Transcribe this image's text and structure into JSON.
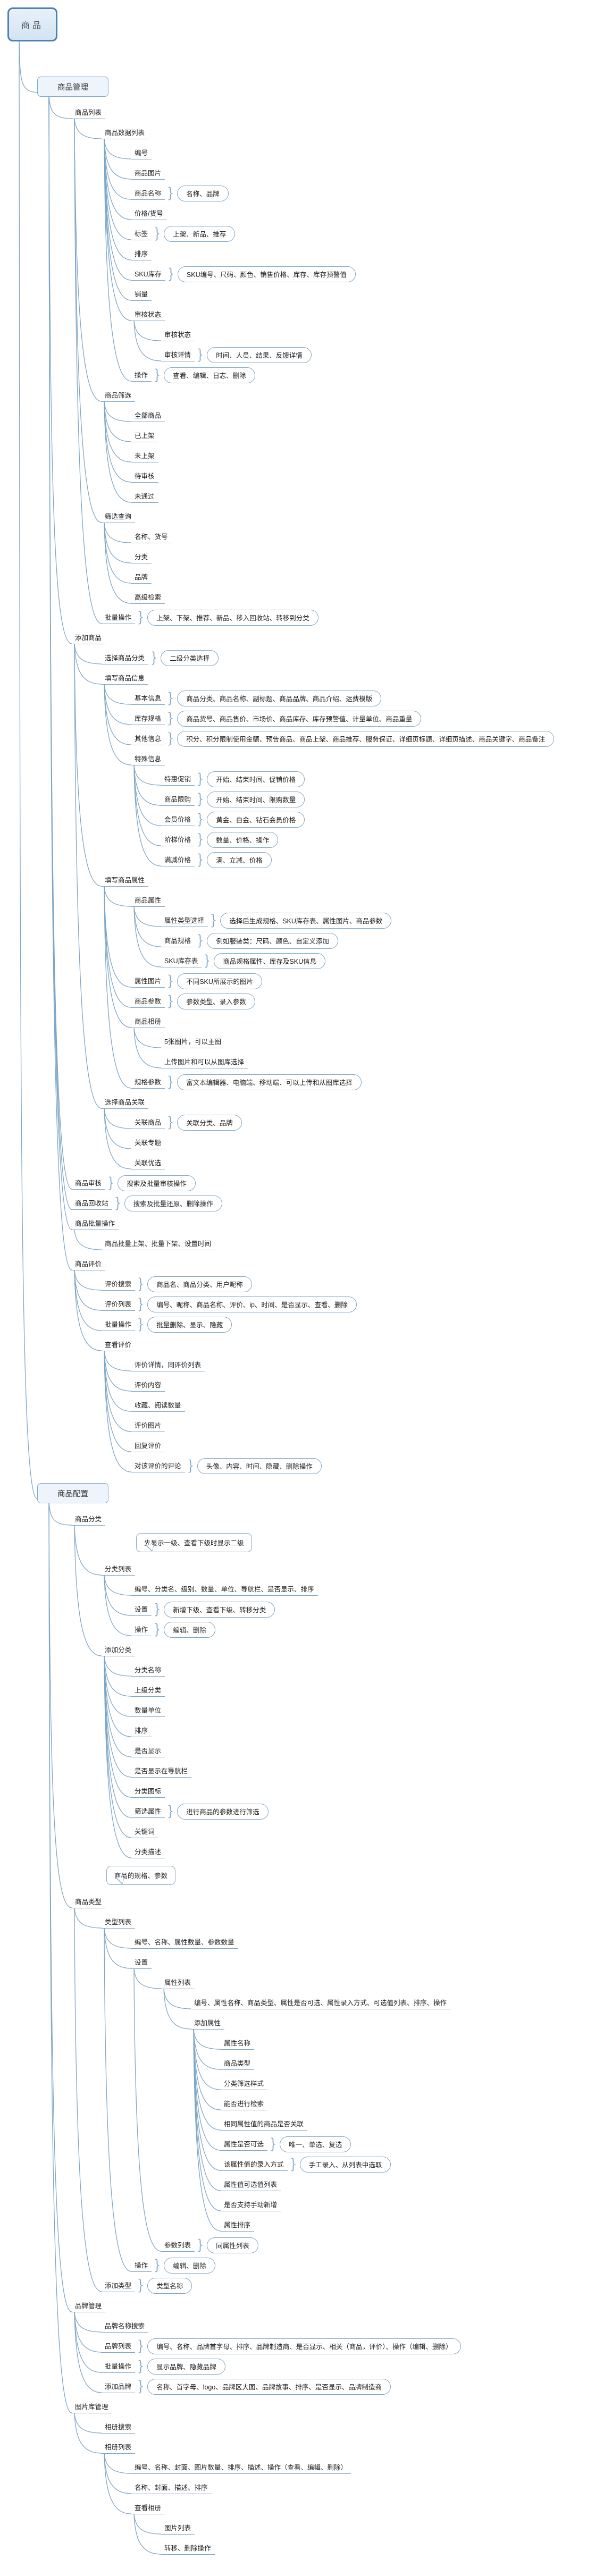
{
  "meta": {
    "app": "mindmap",
    "background": "#ffffff",
    "line_color": "#7fa6c6",
    "root_border_color": "#4f81ad",
    "root_fill_color": "#d9e8f6",
    "topic_fill_color": "#eef4fb",
    "text_color": "#1c1c1c"
  },
  "tree": {
    "text": "商品",
    "style": "root",
    "children": [
      {
        "text": "商品管理",
        "style": "topic",
        "children": [
          {
            "text": "商品列表",
            "children": [
              {
                "text": "商品数据列表",
                "children": [
                  {
                    "text": "编号"
                  },
                  {
                    "text": "商品图片"
                  },
                  {
                    "text": "商品名称",
                    "pill": "名称、品牌"
                  },
                  {
                    "text": "价格/货号"
                  },
                  {
                    "text": "标签",
                    "pill": "上架、新品、推荐"
                  },
                  {
                    "text": "排序"
                  },
                  {
                    "text": "SKU库存",
                    "pill": "SKU编号、尺码、颜色、销售价格、库存、库存预警值"
                  },
                  {
                    "text": "销量"
                  },
                  {
                    "text": "审核状态",
                    "children": [
                      {
                        "text": "审核状态"
                      },
                      {
                        "text": "审核详情",
                        "pill": "时间、人员、结果、反馈详情"
                      }
                    ]
                  },
                  {
                    "text": "操作",
                    "pill": "查看、编辑、日志、删除"
                  }
                ]
              },
              {
                "text": "商品筛选",
                "children": [
                  {
                    "text": "全部商品"
                  },
                  {
                    "text": "已上架"
                  },
                  {
                    "text": "未上架"
                  },
                  {
                    "text": "待审核"
                  },
                  {
                    "text": "未通过"
                  }
                ]
              },
              {
                "text": "筛选查询",
                "children": [
                  {
                    "text": "名称、货号"
                  },
                  {
                    "text": "分类"
                  },
                  {
                    "text": "品牌"
                  },
                  {
                    "text": "高级检索"
                  }
                ]
              },
              {
                "text": "批量操作",
                "pill": "上架、下架、推荐、新品、移入回收站、转移到分类"
              }
            ]
          },
          {
            "text": "添加商品",
            "children": [
              {
                "text": "选择商品分类",
                "pill": "二级分类选择"
              },
              {
                "text": "填写商品信息",
                "children": [
                  {
                    "text": "基本信息",
                    "pill": "商品分类、商品名称、副标题、商品品牌、商品介绍、运费模版"
                  },
                  {
                    "text": "库存规格",
                    "pill": "商品货号、商品售价、市场价、商品库存、库存预警值、计量单位、商品重量"
                  },
                  {
                    "text": "其他信息",
                    "pill": "积分、积分限制使用金额、预告商品、商品上架、商品推荐、服务保证、详细页标题、详细页描述、商品关键字、商品备注"
                  },
                  {
                    "text": "特殊信息",
                    "children": [
                      {
                        "text": "特惠促销",
                        "pill": "开始、结束时间、促销价格"
                      },
                      {
                        "text": "商品限购",
                        "pill": "开始、结束时间、限购数量"
                      },
                      {
                        "text": "会员价格",
                        "pill": "黄金、白金、钻石会员价格"
                      },
                      {
                        "text": "阶梯价格",
                        "pill": "数量、价格、操作"
                      },
                      {
                        "text": "满减价格",
                        "pill": "满、立减、价格"
                      }
                    ]
                  }
                ]
              },
              {
                "text": "填写商品属性",
                "children": [
                  {
                    "text": "商品属性",
                    "children": [
                      {
                        "text": "属性类型选择",
                        "pill": "选择后生成规格、SKU库存表、属性图片、商品参数"
                      },
                      {
                        "text": "商品规格",
                        "pill": "例如服装类：尺码、颜色、自定义添加"
                      },
                      {
                        "text": "SKU库存表",
                        "pill": "商品规格属性、库存及SKU信息"
                      }
                    ]
                  },
                  {
                    "text": "属性图片",
                    "pill": "不同SKU所展示的图片"
                  },
                  {
                    "text": "商品参数",
                    "pill": "参数类型、录入参数"
                  },
                  {
                    "text": "商品相册",
                    "children": [
                      {
                        "text": "5张图片，可以主图"
                      },
                      {
                        "text": "上传图片和可以从图库选择"
                      }
                    ]
                  },
                  {
                    "text": "规格参数",
                    "pill": "富文本编辑器、电脑端、移动端、可以上传和从图库选择"
                  }
                ]
              },
              {
                "text": "选择商品关联",
                "children": [
                  {
                    "text": "关联商品",
                    "pill": "关联分类、品牌"
                  },
                  {
                    "text": "关联专题"
                  },
                  {
                    "text": "关联优选"
                  }
                ]
              }
            ]
          },
          {
            "text": "商品审核",
            "pill": "搜索及批量审核操作"
          },
          {
            "text": "商品回收站",
            "pill": "搜索及批量还原、删除操作"
          },
          {
            "text": "商品批量操作",
            "children": [
              {
                "text": "商品批量上架、批量下架、设置时间"
              }
            ]
          },
          {
            "text": "商品评价",
            "children": [
              {
                "text": "评价搜索",
                "pill": "商品名、商品分类、用户昵称"
              },
              {
                "text": "评价列表",
                "pill": "编号、昵称、商品名称、评价、ip、时间、是否显示、查看、删除"
              },
              {
                "text": "批量操作",
                "pill": "批量删除、显示、隐藏"
              },
              {
                "text": "查看评价",
                "children": [
                  {
                    "text": "评价详情，同评价列表"
                  },
                  {
                    "text": "评价内容"
                  },
                  {
                    "text": "收藏、阅读数量"
                  },
                  {
                    "text": "评价图片"
                  },
                  {
                    "text": "回复评价"
                  },
                  {
                    "text": "对该评价的评论",
                    "pill": "头像、内容、时间、隐藏、删除操作"
                  }
                ]
              }
            ]
          }
        ]
      },
      {
        "text": "商品配置",
        "style": "topic",
        "children": [
          {
            "text": "商品分类",
            "children": [
              {
                "text": "分类列表",
                "callout": "先显示一级、查看下级时显示二级",
                "children": [
                  {
                    "text": "编号、分类名、级别、数量、单位、导航栏、是否显示、排序"
                  },
                  {
                    "text": "设置",
                    "pill": "新增下级、查看下级、转移分类"
                  },
                  {
                    "text": "操作",
                    "pill": "编辑、删除"
                  }
                ]
              },
              {
                "text": "添加分类",
                "children": [
                  {
                    "text": "分类名称"
                  },
                  {
                    "text": "上级分类"
                  },
                  {
                    "text": "数量单位"
                  },
                  {
                    "text": "排序"
                  },
                  {
                    "text": "是否显示"
                  },
                  {
                    "text": "是否显示在导航栏"
                  },
                  {
                    "text": "分类图标"
                  },
                  {
                    "text": "筛选属性",
                    "pill": "进行商品的参数进行筛选"
                  },
                  {
                    "text": "关键词"
                  },
                  {
                    "text": "分类描述"
                  }
                ]
              }
            ]
          },
          {
            "text": "商品类型",
            "callout": "商品的规格、参数",
            "children": [
              {
                "text": "类型列表",
                "children": [
                  {
                    "text": "编号、名称、属性数量、参数数量"
                  },
                  {
                    "text": "设置",
                    "children": [
                      {
                        "text": "属性列表",
                        "children": [
                          {
                            "text": "编号、属性名称、商品类型、属性是否可选、属性录入方式、可选值列表、排序、操作"
                          },
                          {
                            "text": "添加属性",
                            "children": [
                              {
                                "text": "属性名称"
                              },
                              {
                                "text": "商品类型"
                              },
                              {
                                "text": "分类筛选样式"
                              },
                              {
                                "text": "能否进行检索"
                              },
                              {
                                "text": "相同属性值的商品是否关联"
                              },
                              {
                                "text": "属性是否可选",
                                "pill": "唯一、单选、复选"
                              },
                              {
                                "text": "该属性值的录入方式",
                                "pill": "手工录入、从列表中选取"
                              },
                              {
                                "text": "属性值可选值列表"
                              },
                              {
                                "text": "是否支持手动新增"
                              },
                              {
                                "text": "属性排序"
                              }
                            ]
                          }
                        ]
                      },
                      {
                        "text": "参数列表",
                        "pill": "同属性列表"
                      }
                    ]
                  },
                  {
                    "text": "操作",
                    "pill": "编辑、删除"
                  }
                ]
              },
              {
                "text": "添加类型",
                "pill": "类型名称"
              }
            ]
          },
          {
            "text": "品牌管理",
            "children": [
              {
                "text": "品牌名称搜索"
              },
              {
                "text": "品牌列表",
                "pill": "编号、名称、品牌首字母、排序、品牌制造商、是否显示、相关（商品，评价）、操作（编辑、删除）"
              },
              {
                "text": "批量操作",
                "pill": "显示品牌、隐藏品牌"
              },
              {
                "text": "添加品牌",
                "pill": "名称、首字母、logo、品牌区大图、品牌故事、排序、是否显示、品牌制造商"
              }
            ]
          },
          {
            "text": "图片库管理",
            "children": [
              {
                "text": "相册搜索"
              },
              {
                "text": "相册列表",
                "children": [
                  {
                    "text": "编号、名称、封面、图片数量、排序、描述、操作（查看、编辑、删除）"
                  },
                  {
                    "text": "名称、封面、描述、排序"
                  },
                  {
                    "text": "查看相册",
                    "children": [
                      {
                        "text": "图片列表"
                      },
                      {
                        "text": "转移、删除操作"
                      }
                    ]
                  }
                ]
              }
            ]
          }
        ]
      }
    ]
  }
}
